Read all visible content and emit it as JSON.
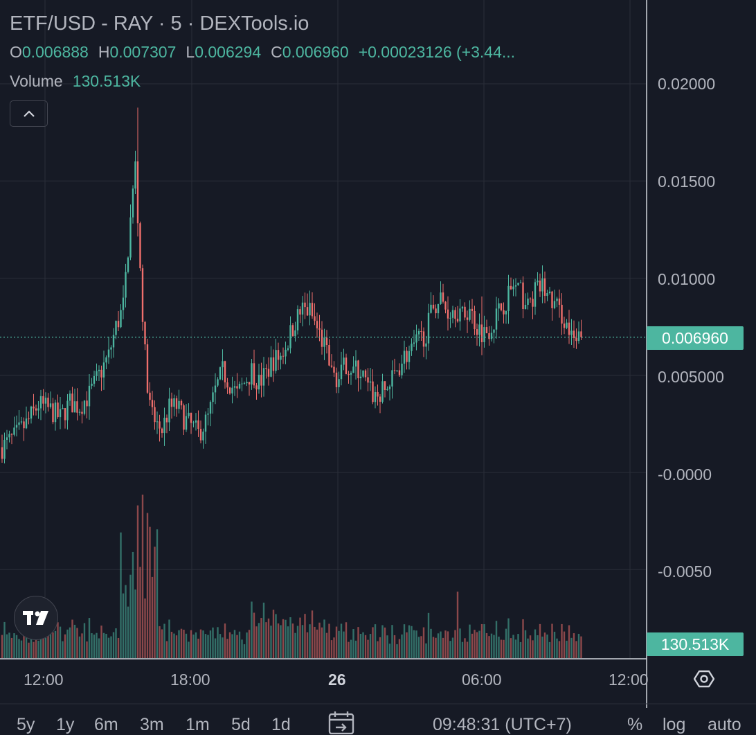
{
  "header": {
    "title": "ETF/USD - RAY · 5 · DEXTools.io",
    "ohlc": {
      "o_label": "O",
      "o_value": "0.006888",
      "h_label": "H",
      "h_value": "0.007307",
      "l_label": "L",
      "l_value": "0.006294",
      "c_label": "C",
      "c_value": "0.006960",
      "change": "+0.00023126 (+3.44..."
    },
    "volume_label": "Volume",
    "volume_value": "130.513K"
  },
  "price_axis": {
    "labels": [
      "0.02000",
      "0.01500",
      "0.01000",
      "0.005000",
      "-0.0000",
      "-0.0050"
    ],
    "last_price": "0.006960",
    "volume_badge": "130.513K"
  },
  "time_axis": {
    "labels": [
      "12:00",
      "18:00",
      "26",
      "06:00",
      "12:00"
    ]
  },
  "bottom_bar": {
    "ranges": [
      "5y",
      "1y",
      "6m",
      "3m",
      "1m",
      "5d",
      "1d"
    ],
    "clock": "09:48:31 (UTC+7)",
    "percent": "%",
    "log": "log",
    "auto": "auto"
  },
  "colors": {
    "background": "#161a25",
    "up": "#4db6a0",
    "down": "#ef6f6c",
    "grid": "#2a2e39"
  },
  "icons": {
    "collapse": "chevron-up-icon",
    "settings": "gear-icon",
    "logo": "tradingview-logo",
    "goto_date": "calendar-arrow-icon"
  },
  "chart_data": {
    "type": "candlestick",
    "symbol": "ETF/USD - RAY",
    "interval": "5",
    "ylim": [
      -0.0095,
      0.0225
    ],
    "last_price": 0.00696,
    "x": [
      "12:00",
      "18:00",
      "26",
      "06:00",
      "12:00"
    ],
    "close_path": [
      [
        0,
        0.0013
      ],
      [
        5,
        0.0018
      ],
      [
        10,
        0.0025
      ],
      [
        15,
        0.0035
      ],
      [
        20,
        0.0032
      ],
      [
        24,
        0.0028
      ],
      [
        28,
        0.0036
      ],
      [
        32,
        0.0034
      ],
      [
        36,
        0.004
      ],
      [
        40,
        0.005
      ],
      [
        44,
        0.006
      ],
      [
        47,
        0.0075
      ],
      [
        50,
        0.0085
      ],
      [
        53,
        0.013
      ],
      [
        55,
        0.0158
      ],
      [
        57,
        0.0105
      ],
      [
        59,
        0.006
      ],
      [
        61,
        0.0034
      ],
      [
        63,
        0.0026
      ],
      [
        66,
        0.0022
      ],
      [
        69,
        0.0033
      ],
      [
        72,
        0.0034
      ],
      [
        75,
        0.0028
      ],
      [
        78,
        0.0024
      ],
      [
        81,
        0.002
      ],
      [
        85,
        0.0028
      ],
      [
        88,
        0.0042
      ],
      [
        91,
        0.0052
      ],
      [
        94,
        0.0046
      ],
      [
        97,
        0.004
      ],
      [
        100,
        0.0046
      ],
      [
        103,
        0.0053
      ],
      [
        106,
        0.0046
      ],
      [
        109,
        0.0051
      ],
      [
        112,
        0.0058
      ],
      [
        115,
        0.006
      ],
      [
        118,
        0.0068
      ],
      [
        121,
        0.0078
      ],
      [
        124,
        0.0084
      ],
      [
        127,
        0.0083
      ],
      [
        130,
        0.0074
      ],
      [
        133,
        0.0065
      ],
      [
        136,
        0.0051
      ],
      [
        139,
        0.0048
      ],
      [
        142,
        0.0056
      ],
      [
        145,
        0.0053
      ],
      [
        148,
        0.0052
      ],
      [
        151,
        0.0043
      ],
      [
        154,
        0.0039
      ],
      [
        157,
        0.0041
      ],
      [
        160,
        0.0045
      ],
      [
        163,
        0.0053
      ],
      [
        166,
        0.006
      ],
      [
        169,
        0.0062
      ],
      [
        172,
        0.0068
      ],
      [
        175,
        0.0072
      ],
      [
        178,
        0.0086
      ],
      [
        181,
        0.0089
      ],
      [
        184,
        0.0083
      ],
      [
        187,
        0.0085
      ],
      [
        190,
        0.008
      ],
      [
        193,
        0.0084
      ],
      [
        196,
        0.0075
      ],
      [
        199,
        0.0072
      ],
      [
        202,
        0.0076
      ],
      [
        205,
        0.0083
      ],
      [
        208,
        0.0089
      ],
      [
        211,
        0.0096
      ],
      [
        214,
        0.0092
      ],
      [
        217,
        0.0085
      ],
      [
        220,
        0.0093
      ],
      [
        223,
        0.0096
      ],
      [
        226,
        0.0089
      ],
      [
        229,
        0.0085
      ],
      [
        232,
        0.0079
      ],
      [
        235,
        0.0068
      ],
      [
        237,
        0.0066
      ],
      [
        239,
        0.007
      ]
    ],
    "volume": {
      "last": "130.513K",
      "peak_bars": [
        "~15:30",
        "~05:00"
      ]
    }
  }
}
